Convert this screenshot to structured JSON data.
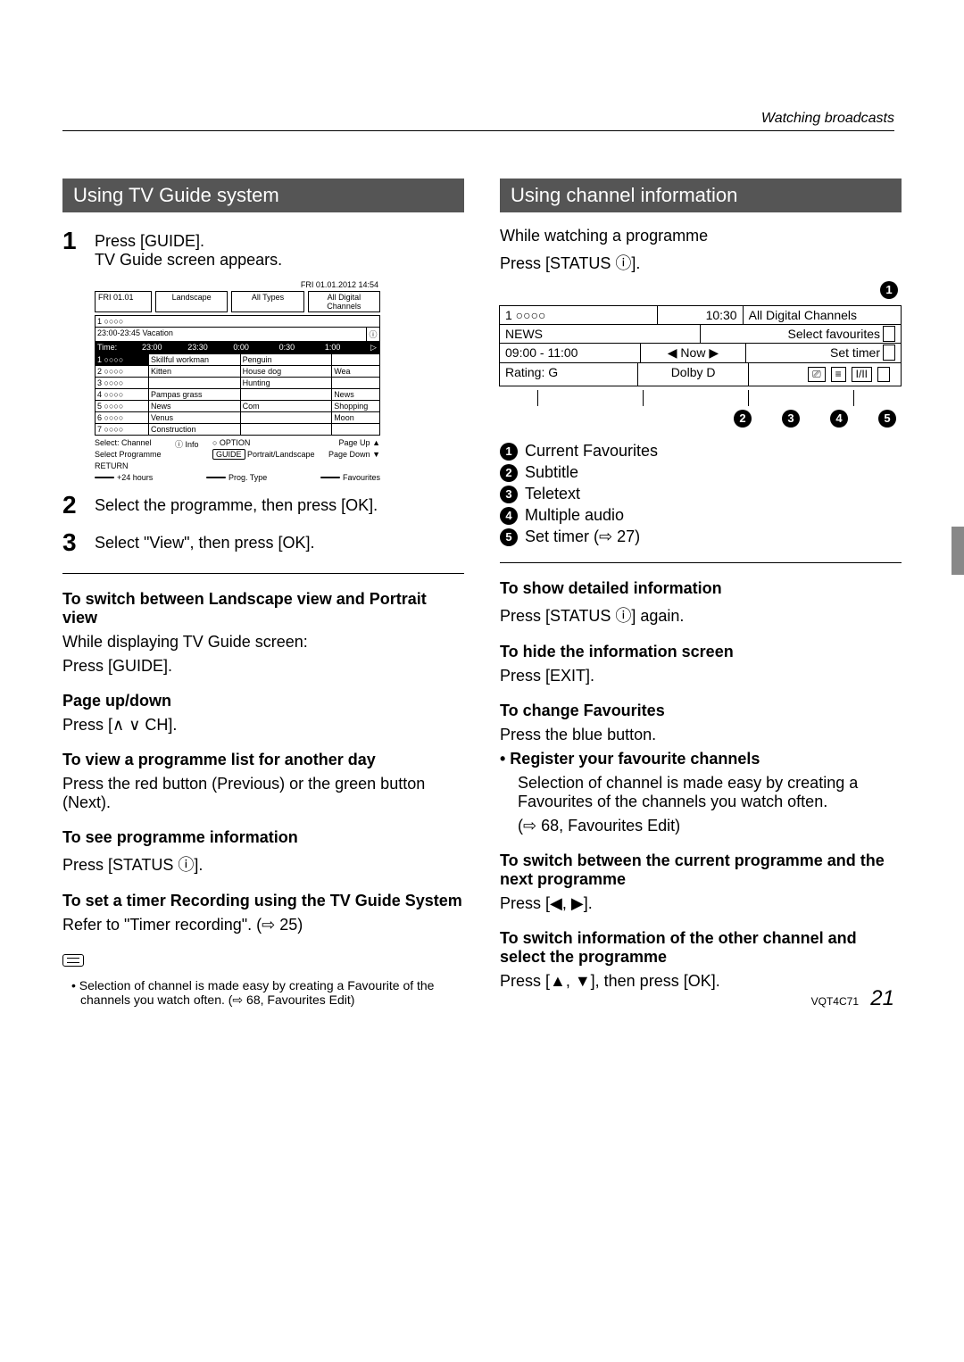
{
  "header": {
    "section_label": "Watching broadcasts"
  },
  "left": {
    "title": "Using TV Guide system",
    "step1a": "Press [GUIDE].",
    "step1b": "TV Guide screen appears.",
    "step2": "Select the programme, then press [OK].",
    "step3": "Select \"View\", then press [OK].",
    "h_switch": "To switch between Landscape view and Portrait view",
    "p_switch1": "While displaying TV Guide screen:",
    "p_switch2": "Press [GUIDE].",
    "h_page": "Page up/down",
    "p_page": "Press [∧ ∨ CH].",
    "h_day": "To view a programme list for another day",
    "p_day": "Press the red button (Previous) or the green button (Next).",
    "h_info": "To see programme information",
    "p_info": "Press [STATUS ⓘ].",
    "h_timer": "To set a timer Recording using the TV Guide System",
    "p_timer": "Refer to \"Timer recording\". (⇨ 25)",
    "note": "Selection of channel is made easy by creating a Favourite of the channels you watch often. (⇨ 68, Favourites Edit)",
    "tvguide": {
      "date_top": "FRI 01.01.2012 14:54",
      "day": "FRI 01.01",
      "view": "Landscape",
      "types": "All Types",
      "channels": "All Digital Channels",
      "ch_head": "1 ○○○○",
      "vac": "23:00-23:45 Vacation",
      "time_label": "Time:",
      "times": [
        "23:00",
        "23:30",
        "0:00",
        "0:30",
        "1:00"
      ],
      "rows": [
        {
          "ch": "1 ○○○○",
          "a": "Skillful workman",
          "b": "Penguin"
        },
        {
          "ch": "2 ○○○○",
          "a": "Kitten",
          "b": "House dog",
          "c": "Wea"
        },
        {
          "ch": "3 ○○○○",
          "a": "",
          "b": "Hunting",
          "c": ""
        },
        {
          "ch": "4 ○○○○",
          "a": "Pampas grass",
          "b": "",
          "c": "News"
        },
        {
          "ch": "5 ○○○○",
          "a": "News",
          "b": "Com",
          "c": "Shopping"
        },
        {
          "ch": "6 ○○○○",
          "a": "Venus",
          "b": "",
          "c": "Moon"
        },
        {
          "ch": "7 ○○○○",
          "a": "Construction",
          "b": "",
          "c": ""
        }
      ],
      "footer": {
        "select_ch": "Select: Channel",
        "info": "ⓘ Info",
        "option": "○ OPTION",
        "pageup": "Page Up",
        "pagedn": "Page Down",
        "select_prog": "Select Programme",
        "return": "RETURN",
        "guide": "GUIDE",
        "portrait": "Portrait/Landscape",
        "hours": "+24 hours",
        "prog_type": "Prog. Type",
        "fav": "Favourites"
      }
    }
  },
  "right": {
    "title": "Using channel information",
    "intro1": "While watching a programme",
    "intro2": "Press [STATUS ⓘ].",
    "ci": {
      "ch": "1 ○○○○",
      "time": "10:30",
      "group": "All Digital Channels",
      "prog": "NEWS",
      "fav": "Select favourites",
      "slot": "09:00 - 11:00",
      "now": "◀ Now ▶",
      "settimer": "Set timer",
      "rating": "Rating: G",
      "dolby": "Dolby D",
      "icon_sub": "⎚",
      "icon_txt": "≡",
      "icon_audio": "I/II"
    },
    "legend": {
      "l1": "Current Favourites",
      "l2": "Subtitle",
      "l3": "Teletext",
      "l4": "Multiple audio",
      "l5": "Set timer (⇨ 27)"
    },
    "h_detail": "To show detailed information",
    "p_detail": "Press [STATUS ⓘ] again.",
    "h_hide": "To hide the information screen",
    "p_hide": "Press [EXIT].",
    "h_fav": "To change Favourites",
    "p_fav": "Press the blue button.",
    "b_reg": "• Register your favourite channels",
    "p_reg1": "Selection of channel is made easy by creating a Favourites of the channels you watch often.",
    "p_reg2": "(⇨ 68, Favourites Edit)",
    "h_next": "To switch between the current programme and the next programme",
    "p_next": "Press [◀, ▶].",
    "h_other": "To switch information of the other channel and select the programme",
    "p_other": "Press [▲, ▼], then press [OK]."
  },
  "footer": {
    "code": "VQT4C71",
    "page": "21"
  }
}
